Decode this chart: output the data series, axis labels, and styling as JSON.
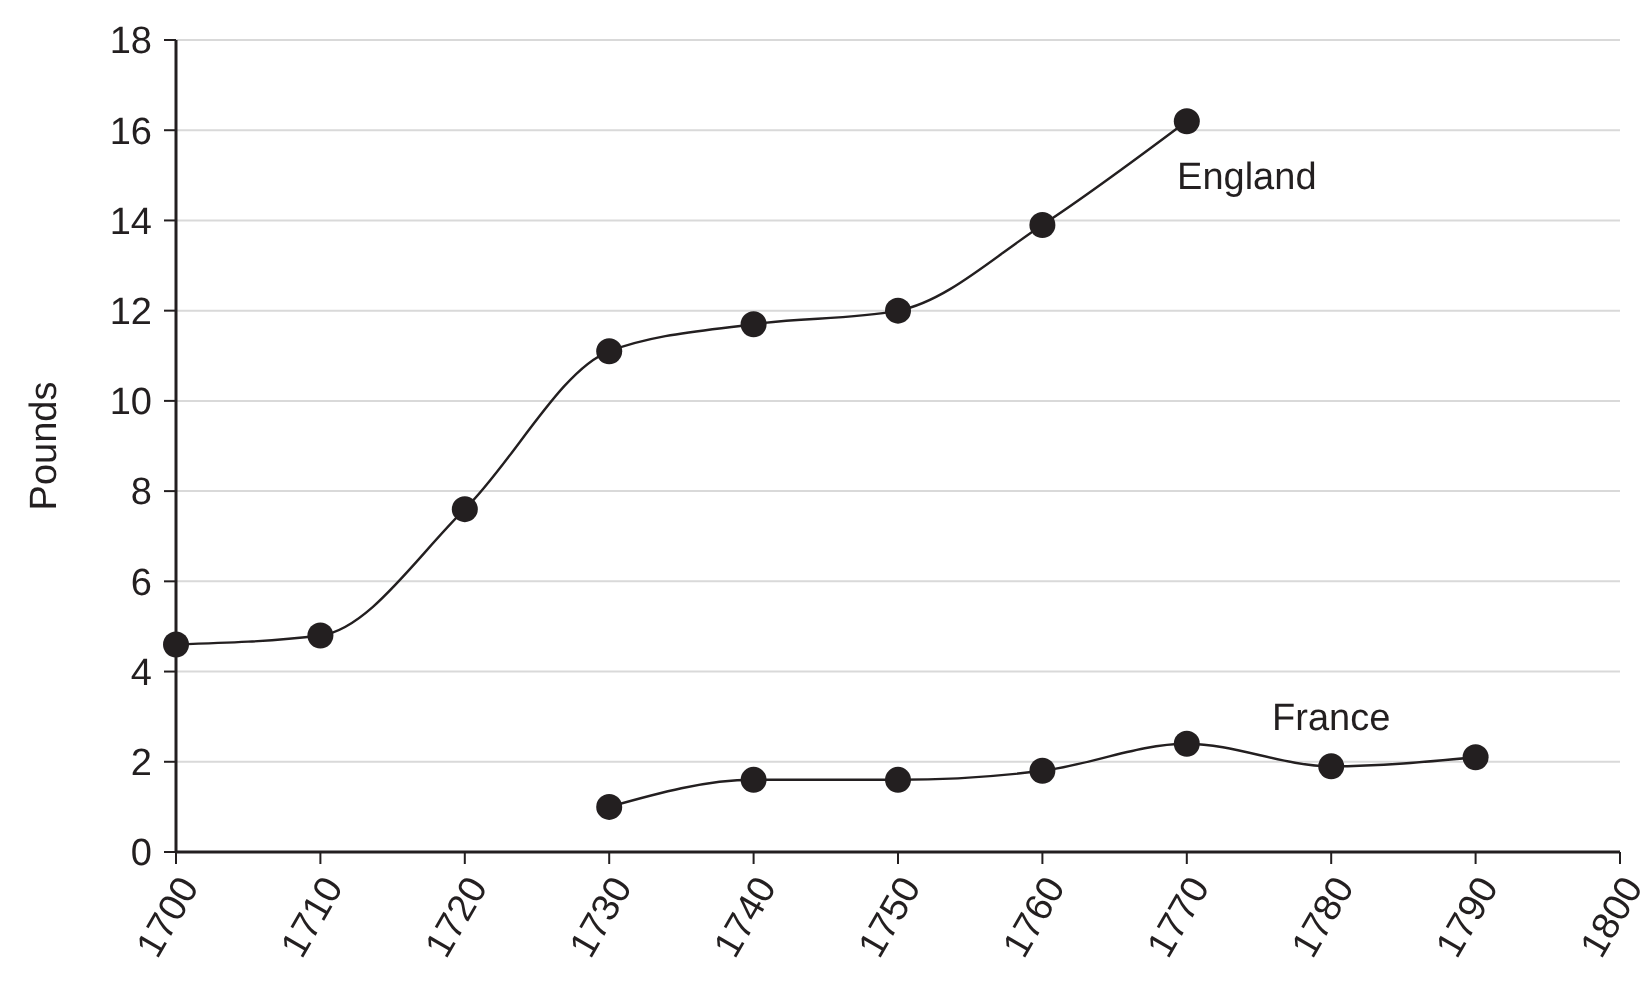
{
  "chart_data": {
    "type": "line",
    "ylabel": "Pounds",
    "x": [
      1700,
      1710,
      1720,
      1730,
      1740,
      1750,
      1760,
      1770,
      1780,
      1790
    ],
    "xlim": [
      1700,
      1800
    ],
    "xticks": [
      1700,
      1710,
      1720,
      1730,
      1740,
      1750,
      1760,
      1770,
      1780,
      1790,
      1800
    ],
    "ylim": [
      0,
      18
    ],
    "yticks": [
      0,
      2,
      4,
      6,
      8,
      10,
      12,
      14,
      16,
      18
    ],
    "grid": "y",
    "marker": "circle",
    "line_style": "solid",
    "series": [
      {
        "name": "England",
        "color": "#231f20",
        "values": [
          4.6,
          4.8,
          7.6,
          11.1,
          11.7,
          12.0,
          13.9,
          16.2,
          null,
          null
        ]
      },
      {
        "name": "France",
        "color": "#231f20",
        "values": [
          null,
          null,
          null,
          1.0,
          1.6,
          1.6,
          1.8,
          2.4,
          1.9,
          2.1
        ]
      }
    ]
  }
}
